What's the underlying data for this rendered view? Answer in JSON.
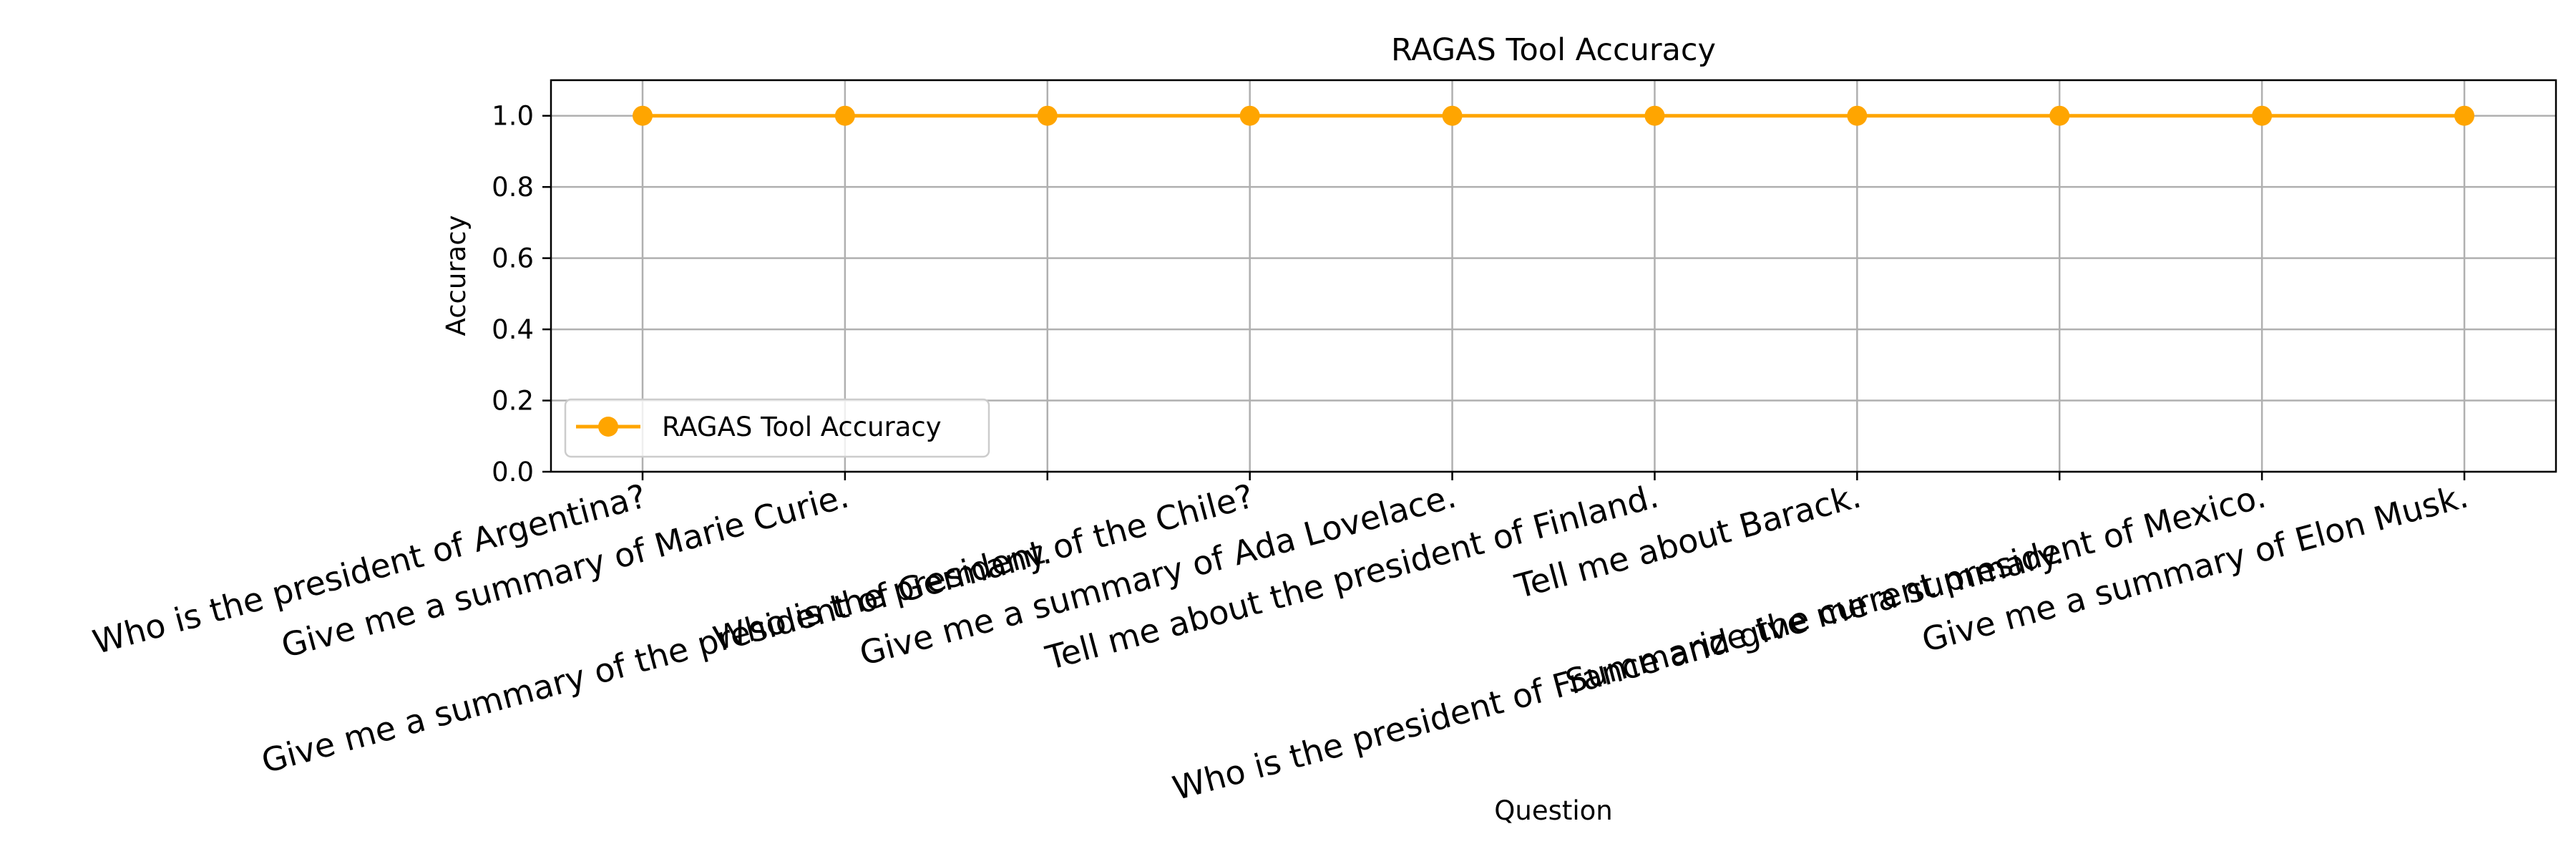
{
  "chart_data": {
    "type": "line",
    "title": "RAGAS Tool Accuracy",
    "xlabel": "Question",
    "ylabel": "Accuracy",
    "categories": [
      "Who is the president of Argentina?",
      "Give me a summary of Marie Curie.",
      "Give me a summary of the president of Germany.",
      "Who is the president of the Chile?",
      "Give me a summary of Ada Lovelace.",
      "Tell me about the president of Finland.",
      "Tell me about Barack.",
      "Who is the president of France and give me a summary.",
      "Summarize the current president of Mexico.",
      "Give me a summary of Elon Musk."
    ],
    "series": [
      {
        "name": "RAGAS Tool Accuracy",
        "values": [
          1.0,
          1.0,
          1.0,
          1.0,
          1.0,
          1.0,
          1.0,
          1.0,
          1.0,
          1.0
        ],
        "color": "#ffa500",
        "marker": "circle"
      }
    ],
    "yticks": [
      "0.0",
      "0.2",
      "0.4",
      "0.6",
      "0.8",
      "1.0"
    ],
    "ylim": [
      0,
      1.1
    ],
    "grid": true,
    "legend": "lower-left"
  }
}
